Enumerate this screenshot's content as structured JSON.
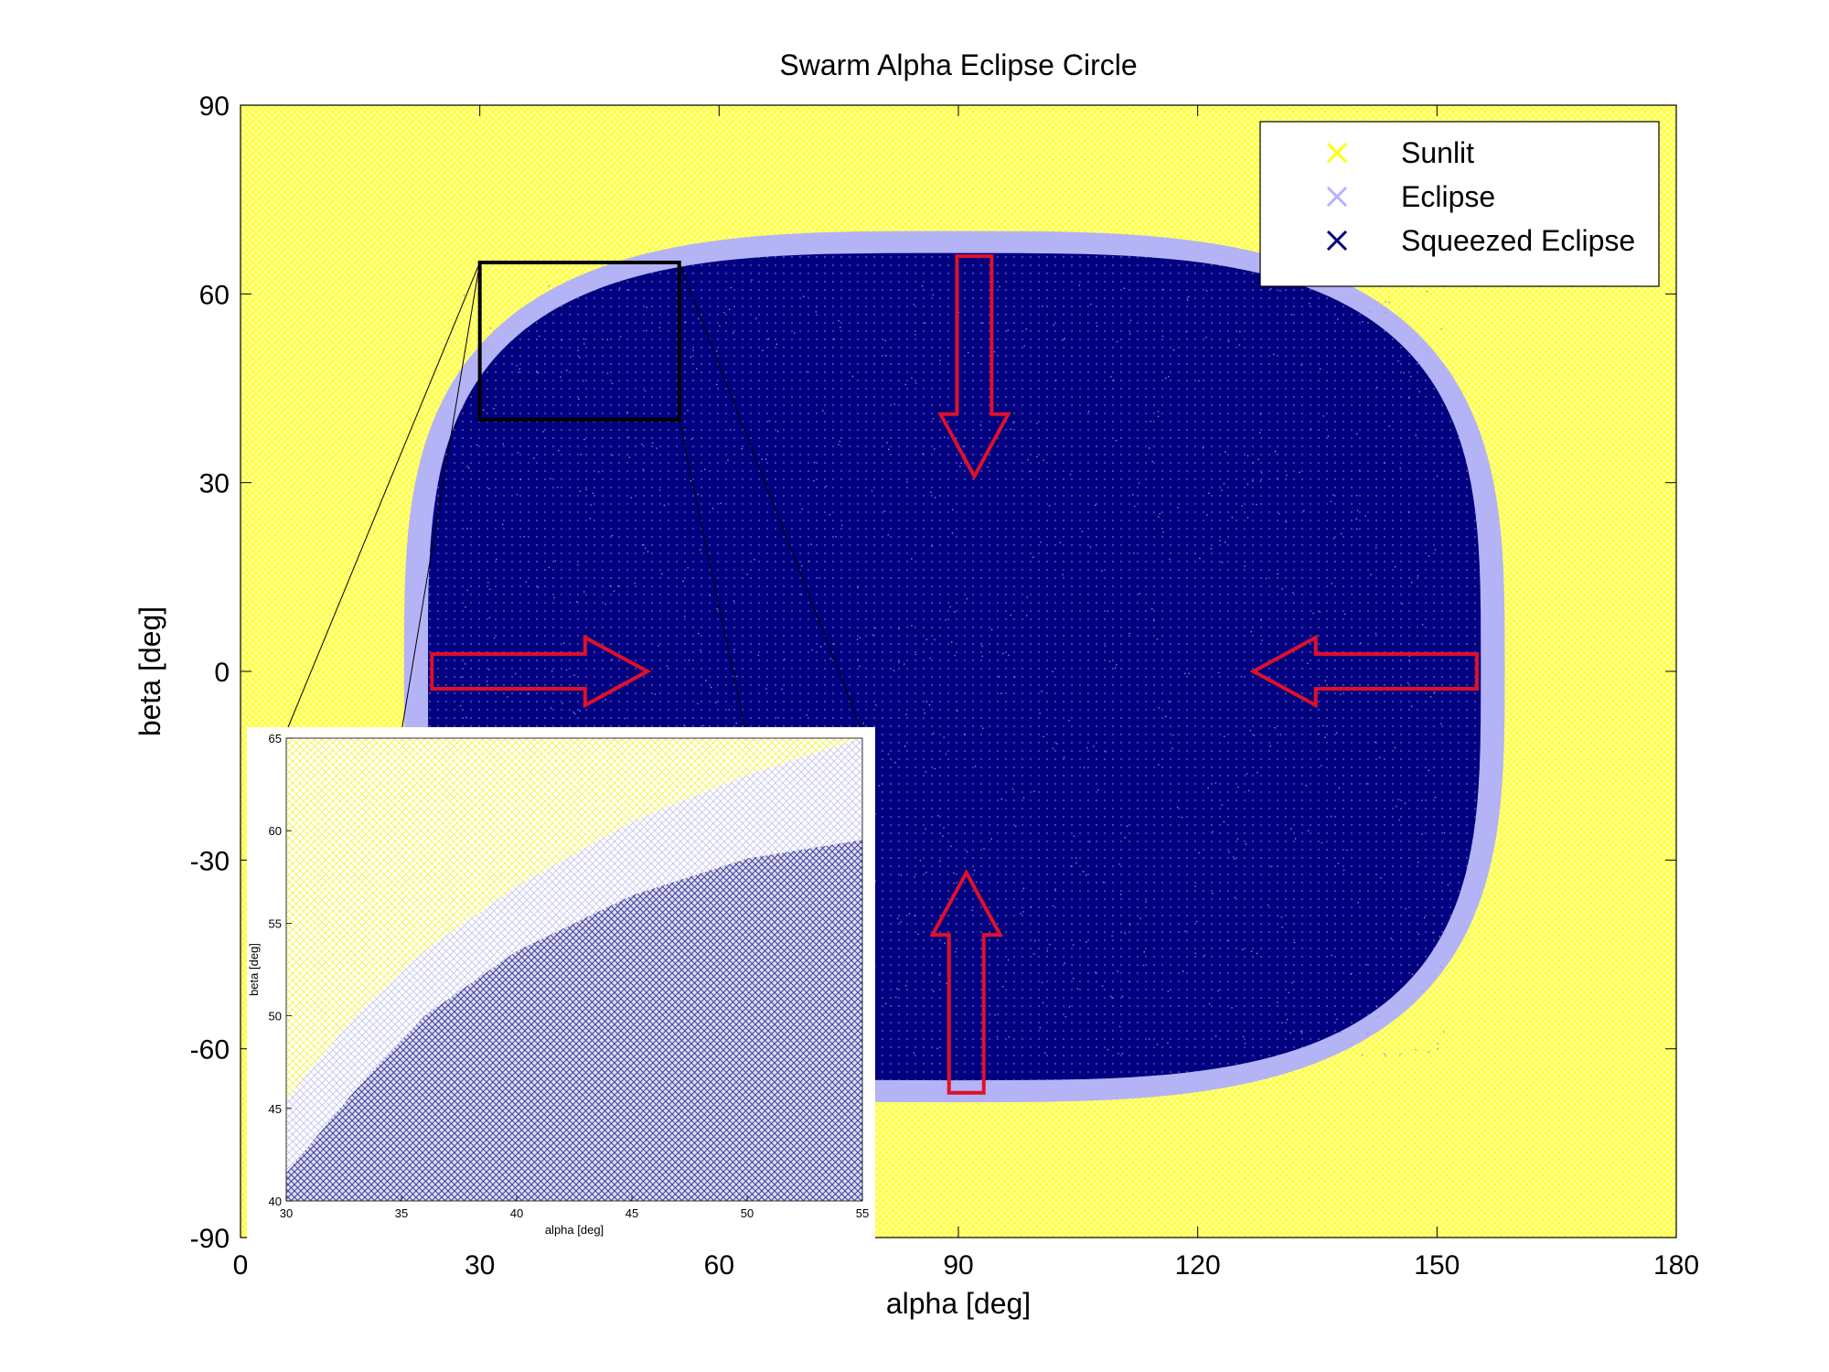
{
  "chart_data": [
    {
      "type": "scatter",
      "title": "Swarm Alpha Eclipse Circle",
      "xlabel": "alpha [deg]",
      "ylabel": "beta [deg]",
      "xlim": [
        0,
        180
      ],
      "ylim": [
        -90,
        90
      ],
      "xticks": [
        0,
        30,
        60,
        90,
        120,
        150,
        180
      ],
      "yticks": [
        -90,
        -60,
        -30,
        0,
        30,
        60,
        90
      ],
      "grid": false,
      "legend_position": "top-right",
      "series": [
        {
          "name": "Sunlit",
          "color": "#ffff00",
          "marker": "x"
        },
        {
          "name": "Eclipse",
          "color": "#b3b3ff",
          "marker": "x"
        },
        {
          "name": "Squeezed Eclipse",
          "color": "#000080",
          "marker": "x"
        }
      ],
      "eclipse_region_extent": {
        "alpha": [
          20.5,
          158.5
        ],
        "beta": [
          -68.5,
          70
        ]
      },
      "squeezed_region_extent": {
        "alpha": [
          23.5,
          155.5
        ],
        "beta": [
          -65,
          66.5
        ]
      },
      "arrows": [
        {
          "from": [
            92,
            66
          ],
          "to": [
            92,
            31
          ],
          "direction": "down"
        },
        {
          "from": [
            91,
            -67
          ],
          "to": [
            91,
            -32
          ],
          "direction": "up"
        },
        {
          "from": [
            24,
            0
          ],
          "to": [
            51,
            0
          ],
          "direction": "right"
        },
        {
          "from": [
            155,
            0
          ],
          "to": [
            127,
            0
          ],
          "direction": "left"
        }
      ],
      "zoom_box": {
        "alpha": [
          30,
          55
        ],
        "beta": [
          40,
          65
        ]
      }
    },
    {
      "type": "scatter",
      "xlabel": "alpha [deg]",
      "ylabel": "beta [deg]",
      "xlim": [
        30,
        55
      ],
      "ylim": [
        40,
        65
      ],
      "xticks": [
        30,
        35,
        40,
        45,
        50,
        55
      ],
      "yticks": [
        40,
        45,
        50,
        55,
        60,
        65
      ],
      "grid": false,
      "series": [
        {
          "name": "Sunlit",
          "color": "#ffff00"
        },
        {
          "name": "Eclipse",
          "color": "#b3b3ff"
        },
        {
          "name": "Squeezed Eclipse",
          "color": "#000080"
        }
      ]
    }
  ]
}
